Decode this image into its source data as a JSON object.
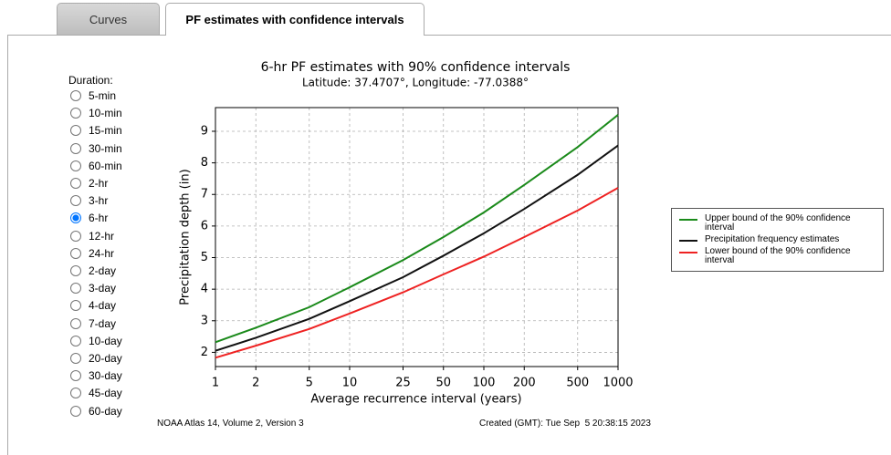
{
  "tabs": [
    "Curves",
    "PF estimates with confidence intervals"
  ],
  "active_tab": 1,
  "duration_label": "Duration:",
  "durations": [
    "5-min",
    "10-min",
    "15-min",
    "30-min",
    "60-min",
    "2-hr",
    "3-hr",
    "6-hr",
    "12-hr",
    "24-hr",
    "2-day",
    "3-day",
    "4-day",
    "7-day",
    "10-day",
    "20-day",
    "30-day",
    "45-day",
    "60-day"
  ],
  "selected_duration": "6-hr",
  "footer": {
    "left": "NOAA Atlas 14, Volume 2, Version 3",
    "right": "Created (GMT): Tue Sep  5 20:38:15 2023"
  },
  "chart_data": {
    "type": "line",
    "title": "6-hr PF estimates with 90% confidence intervals",
    "subtitle": "Latitude: 37.4707°, Longitude: -77.0388°",
    "x_label": "Average recurrence interval (years)",
    "y_label": "Precipitation depth (in)",
    "x": [
      1,
      2,
      5,
      10,
      25,
      50,
      100,
      200,
      500,
      1000
    ],
    "xlim": [
      1,
      1000
    ],
    "xticks": [
      1,
      2,
      5,
      10,
      25,
      50,
      100,
      200,
      500,
      1000
    ],
    "x_log": true,
    "ylim": [
      1.55,
      9.75
    ],
    "yticks": [
      2,
      3,
      4,
      5,
      6,
      7,
      8,
      9
    ],
    "grid": true,
    "legend": "right",
    "series": [
      {
        "name": "Upper bound of the 90% confidence interval",
        "color": "#1a8a1a",
        "values": [
          2.32,
          2.78,
          3.43,
          4.06,
          4.92,
          5.65,
          6.43,
          7.3,
          8.5,
          9.52
        ]
      },
      {
        "name": "Precipitation frequency estimates",
        "color": "#111111",
        "values": [
          2.05,
          2.46,
          3.06,
          3.62,
          4.38,
          5.06,
          5.77,
          6.54,
          7.62,
          8.55
        ]
      },
      {
        "name": "Lower bound of the 90% confidence interval",
        "color": "#ee2222",
        "values": [
          1.83,
          2.21,
          2.74,
          3.23,
          3.9,
          4.47,
          5.03,
          5.65,
          6.49,
          7.21
        ]
      }
    ]
  }
}
